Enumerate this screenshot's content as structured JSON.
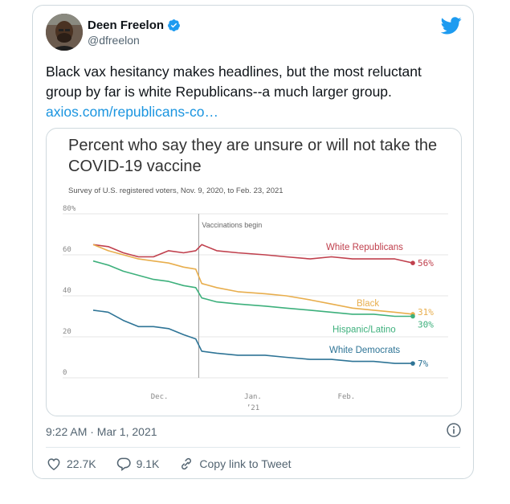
{
  "user": {
    "name": "Deen Freelon",
    "handle": "@dfreelon"
  },
  "tweet": {
    "text": "Black vax hesitancy makes headlines, but the most reluctant group by far is white Republicans--a much larger group.",
    "link_text": "axios.com/republicans-co…",
    "timestamp": "9:22 AM · Mar 1, 2021"
  },
  "actions": {
    "likes": "22.7K",
    "replies": "9.1K",
    "copy_link": "Copy link to Tweet"
  },
  "icons": {
    "verified": "verified-badge-icon",
    "twitter": "twitter-bird-icon",
    "info": "info-icon",
    "like": "heart-icon",
    "reply": "reply-icon",
    "link": "link-icon"
  },
  "colors": {
    "brand": "#1d9bf0",
    "link": "#1b95e0"
  },
  "chart_data": {
    "type": "line",
    "title": "Percent who say they are unsure or will not take the COVID-19 vaccine",
    "subtitle": "Survey of U.S. registered voters, Nov. 9, 2020, to Feb. 23, 2021",
    "ylim": [
      0,
      80
    ],
    "yticks": [
      "80%",
      "60",
      "40",
      "20",
      "0"
    ],
    "ytick_values": [
      80,
      60,
      40,
      20,
      0
    ],
    "xticks": [
      "Dec.",
      "Jan.",
      "Feb."
    ],
    "xtick_sub": "’21",
    "x_range": [
      "2020-11-09",
      "2021-02-23"
    ],
    "xtick_dates": [
      "2020-12-01",
      "2021-01-01",
      "2021-02-01"
    ],
    "annotation": {
      "label": "Vaccinations begin",
      "date": "2020-12-14"
    },
    "grid": true,
    "series": [
      {
        "name": "White Republicans",
        "end_label": "56%",
        "color": "#c0404d",
        "points": [
          [
            "2020-11-09",
            65
          ],
          [
            "2020-11-14",
            64
          ],
          [
            "2020-11-19",
            61
          ],
          [
            "2020-11-24",
            59
          ],
          [
            "2020-11-29",
            59
          ],
          [
            "2020-12-04",
            62
          ],
          [
            "2020-12-09",
            61
          ],
          [
            "2020-12-13",
            62
          ],
          [
            "2020-12-15",
            65
          ],
          [
            "2020-12-20",
            62
          ],
          [
            "2020-12-27",
            61
          ],
          [
            "2021-01-05",
            60
          ],
          [
            "2021-01-12",
            59
          ],
          [
            "2021-01-20",
            58
          ],
          [
            "2021-01-27",
            59
          ],
          [
            "2021-02-03",
            58
          ],
          [
            "2021-02-10",
            58
          ],
          [
            "2021-02-17",
            58
          ],
          [
            "2021-02-23",
            56
          ]
        ]
      },
      {
        "name": "Black",
        "end_label": "31%",
        "color": "#e8ae4d",
        "points": [
          [
            "2020-11-09",
            65
          ],
          [
            "2020-11-14",
            62
          ],
          [
            "2020-11-19",
            60
          ],
          [
            "2020-11-24",
            58
          ],
          [
            "2020-11-29",
            57
          ],
          [
            "2020-12-04",
            56
          ],
          [
            "2020-12-09",
            54
          ],
          [
            "2020-12-13",
            53
          ],
          [
            "2020-12-15",
            46
          ],
          [
            "2020-12-20",
            44
          ],
          [
            "2020-12-27",
            42
          ],
          [
            "2021-01-05",
            41
          ],
          [
            "2021-01-12",
            40
          ],
          [
            "2021-01-20",
            38
          ],
          [
            "2021-01-27",
            36
          ],
          [
            "2021-02-03",
            34
          ],
          [
            "2021-02-10",
            33
          ],
          [
            "2021-02-17",
            32
          ],
          [
            "2021-02-23",
            31
          ]
        ]
      },
      {
        "name": "Hispanic/Latino",
        "end_label": "30%",
        "color": "#3db07c",
        "points": [
          [
            "2020-11-09",
            57
          ],
          [
            "2020-11-14",
            55
          ],
          [
            "2020-11-19",
            52
          ],
          [
            "2020-11-24",
            50
          ],
          [
            "2020-11-29",
            48
          ],
          [
            "2020-12-04",
            47
          ],
          [
            "2020-12-09",
            45
          ],
          [
            "2020-12-13",
            44
          ],
          [
            "2020-12-15",
            39
          ],
          [
            "2020-12-20",
            37
          ],
          [
            "2020-12-27",
            36
          ],
          [
            "2021-01-05",
            35
          ],
          [
            "2021-01-12",
            34
          ],
          [
            "2021-01-20",
            33
          ],
          [
            "2021-01-27",
            32
          ],
          [
            "2021-02-03",
            31
          ],
          [
            "2021-02-10",
            31
          ],
          [
            "2021-02-17",
            30
          ],
          [
            "2021-02-23",
            30
          ]
        ]
      },
      {
        "name": "White Democrats",
        "end_label": "7%",
        "color": "#2e7496",
        "points": [
          [
            "2020-11-09",
            33
          ],
          [
            "2020-11-14",
            32
          ],
          [
            "2020-11-19",
            28
          ],
          [
            "2020-11-24",
            25
          ],
          [
            "2020-11-29",
            25
          ],
          [
            "2020-12-04",
            24
          ],
          [
            "2020-12-09",
            21
          ],
          [
            "2020-12-13",
            19
          ],
          [
            "2020-12-15",
            13
          ],
          [
            "2020-12-20",
            12
          ],
          [
            "2020-12-27",
            11
          ],
          [
            "2021-01-05",
            11
          ],
          [
            "2021-01-12",
            10
          ],
          [
            "2021-01-20",
            9
          ],
          [
            "2021-01-27",
            9
          ],
          [
            "2021-02-03",
            8
          ],
          [
            "2021-02-10",
            8
          ],
          [
            "2021-02-17",
            7
          ],
          [
            "2021-02-23",
            7
          ]
        ]
      }
    ]
  }
}
